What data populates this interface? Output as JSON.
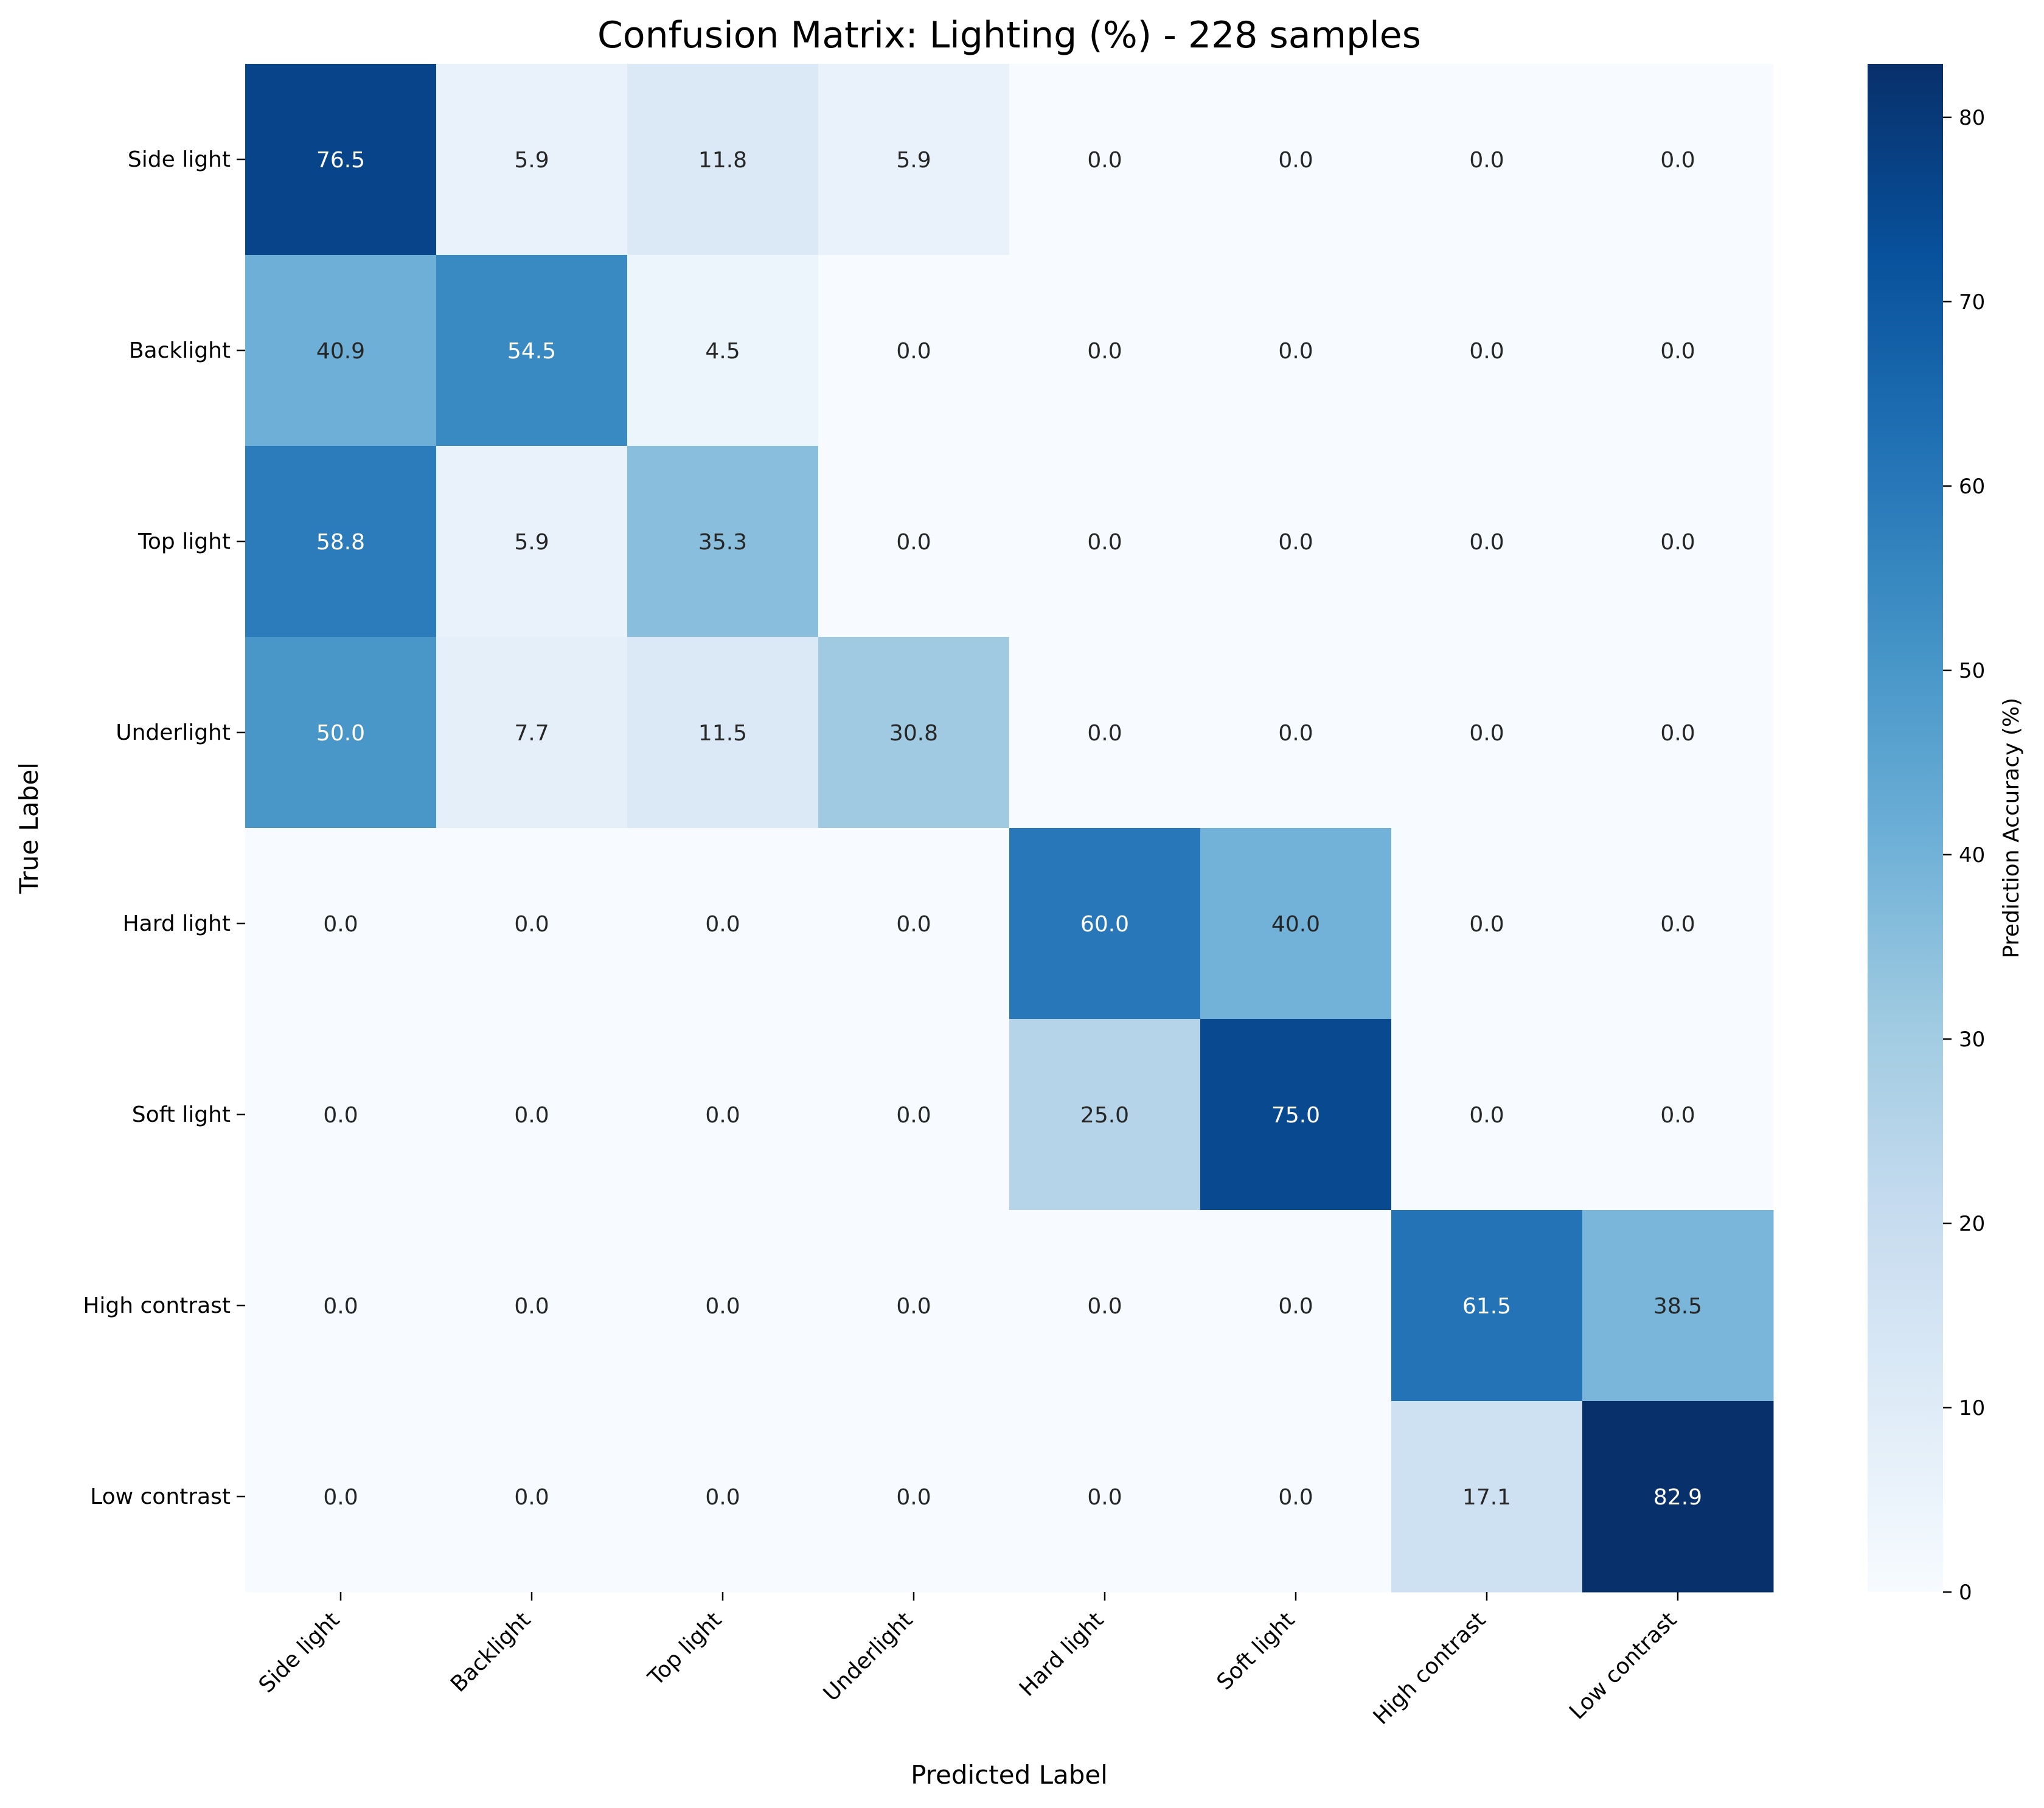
{
  "chart_data": {
    "type": "heatmap",
    "title": "Confusion Matrix: Lighting (%) - 228 samples",
    "xlabel": "Predicted Label",
    "ylabel": "True Label",
    "row_labels": [
      "Side light",
      "Backlight",
      "Top light",
      "Underlight",
      "Hard light",
      "Soft light",
      "High contrast",
      "Low contrast"
    ],
    "col_labels": [
      "Side light",
      "Backlight",
      "Top light",
      "Underlight",
      "Hard light",
      "Soft light",
      "High contrast",
      "Low contrast"
    ],
    "values": [
      [
        76.5,
        5.9,
        11.8,
        5.9,
        0.0,
        0.0,
        0.0,
        0.0
      ],
      [
        40.9,
        54.5,
        4.5,
        0.0,
        0.0,
        0.0,
        0.0,
        0.0
      ],
      [
        58.8,
        5.9,
        35.3,
        0.0,
        0.0,
        0.0,
        0.0,
        0.0
      ],
      [
        50.0,
        7.7,
        11.5,
        30.8,
        0.0,
        0.0,
        0.0,
        0.0
      ],
      [
        0.0,
        0.0,
        0.0,
        0.0,
        60.0,
        40.0,
        0.0,
        0.0
      ],
      [
        0.0,
        0.0,
        0.0,
        0.0,
        25.0,
        75.0,
        0.0,
        0.0
      ],
      [
        0.0,
        0.0,
        0.0,
        0.0,
        0.0,
        0.0,
        61.5,
        38.5
      ],
      [
        0.0,
        0.0,
        0.0,
        0.0,
        0.0,
        0.0,
        17.1,
        82.9
      ]
    ],
    "colormap": "Blues",
    "colorbar": {
      "label": "Prediction Accuracy (%)",
      "range": [
        0,
        82.9
      ],
      "ticks": [
        0,
        10,
        20,
        30,
        40,
        50,
        60,
        70,
        80
      ]
    },
    "value_format": "0.0",
    "grid": false
  }
}
